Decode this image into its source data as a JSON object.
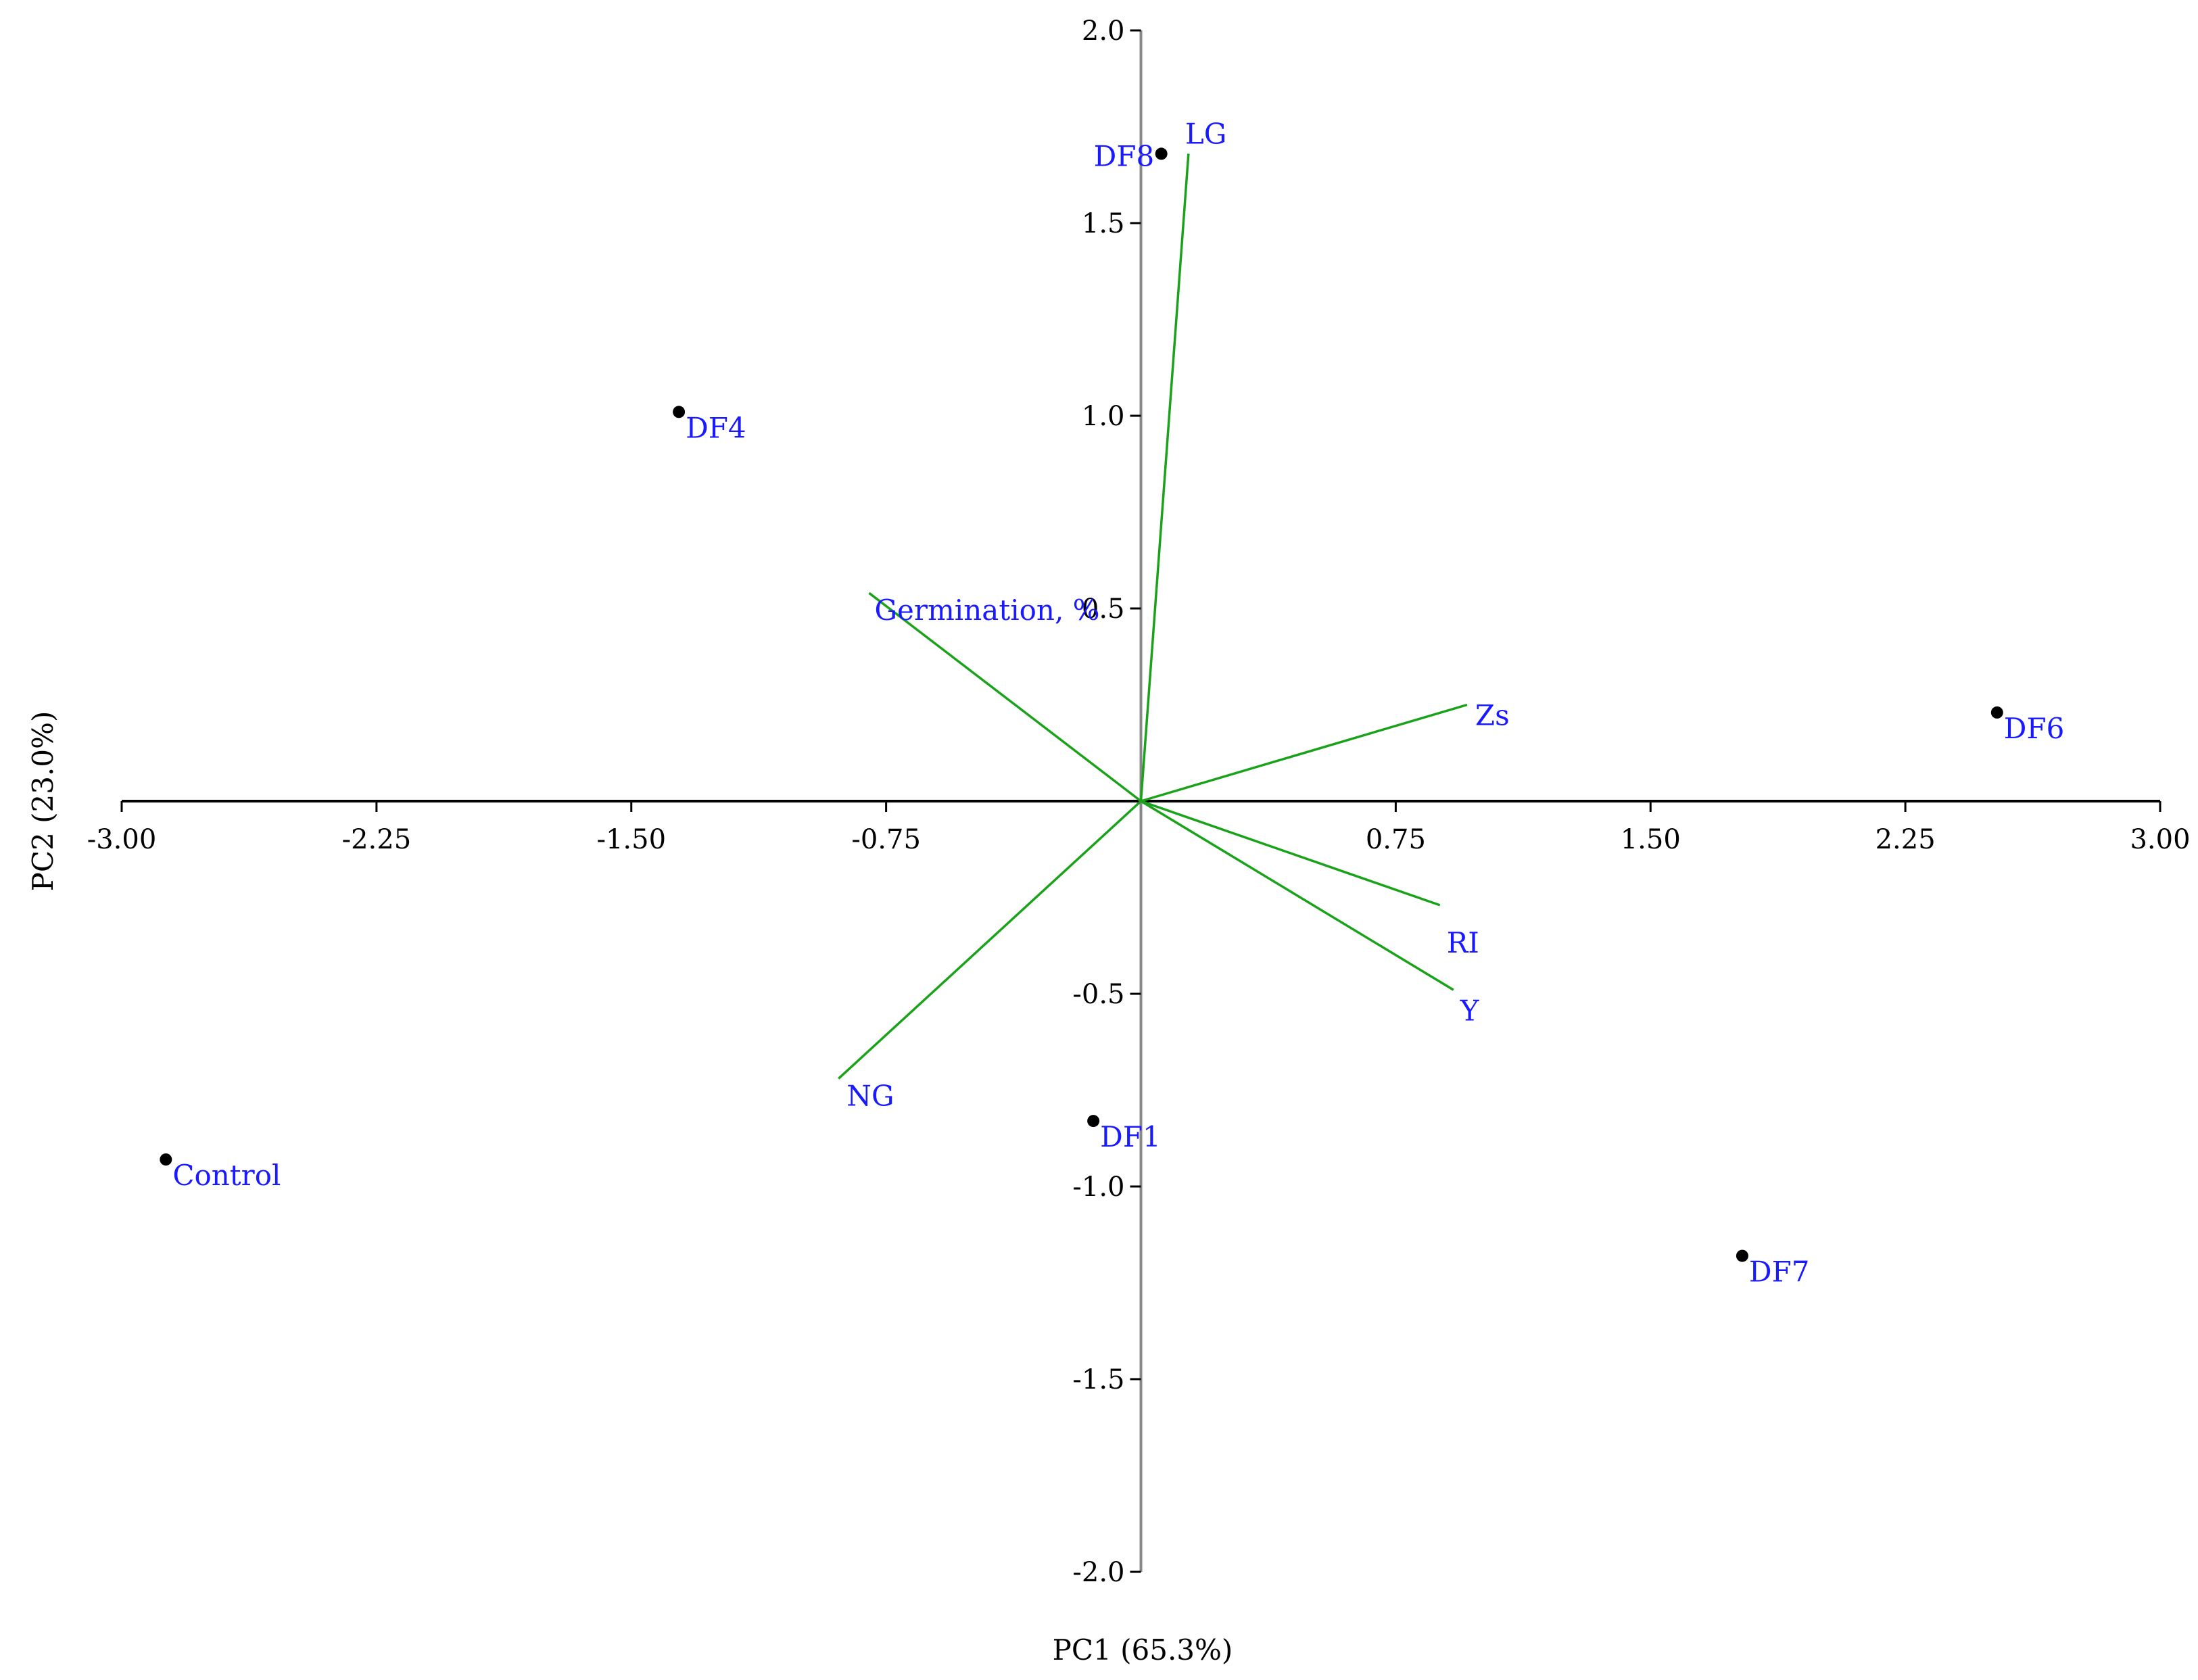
{
  "chart_data": {
    "type": "scatter",
    "subtype": "biplot",
    "xlabel": "PC1 (65.3%)",
    "ylabel": "PC2 (23.0%)",
    "xlim": [
      -3.0,
      3.0
    ],
    "ylim": [
      -2.0,
      2.0
    ],
    "x_ticks": [
      "-3.00",
      "-2.25",
      "-1.50",
      "-0.75",
      "0.75",
      "1.50",
      "2.25",
      "3.00"
    ],
    "x_tick_values": [
      -3.0,
      -2.25,
      -1.5,
      -0.75,
      0.75,
      1.5,
      2.25,
      3.0
    ],
    "y_ticks": [
      "2.0",
      "1.5",
      "1.0",
      "0.5",
      "-0.5",
      "-1.0",
      "-1.5",
      "-2.0"
    ],
    "y_tick_values": [
      2.0,
      1.5,
      1.0,
      0.5,
      -0.5,
      -1.0,
      -1.5,
      -2.0
    ],
    "grid": false,
    "points": [
      {
        "label": "DF8",
        "x": 0.06,
        "y": 1.68
      },
      {
        "label": "DF4",
        "x": -1.36,
        "y": 1.01
      },
      {
        "label": "DF6",
        "x": 2.52,
        "y": 0.23
      },
      {
        "label": "DF1",
        "x": -0.14,
        "y": -0.83
      },
      {
        "label": "Control",
        "x": -2.87,
        "y": -0.93
      },
      {
        "label": "DF7",
        "x": 1.77,
        "y": -1.18
      }
    ],
    "vectors": [
      {
        "label": "LG",
        "x": 0.14,
        "y": 1.68
      },
      {
        "label": "Germination, %",
        "x": -0.8,
        "y": 0.54
      },
      {
        "label": "Zs",
        "x": 0.96,
        "y": 0.25
      },
      {
        "label": "RI",
        "x": 0.88,
        "y": -0.27
      },
      {
        "label": "Y",
        "x": 0.92,
        "y": -0.49
      },
      {
        "label": "NG",
        "x": -0.89,
        "y": -0.72
      }
    ],
    "colors": {
      "axis": "#888888",
      "ticks": "#000000",
      "vector": "#1aa21a",
      "point": "#000000",
      "label": "#1a1aff"
    }
  }
}
